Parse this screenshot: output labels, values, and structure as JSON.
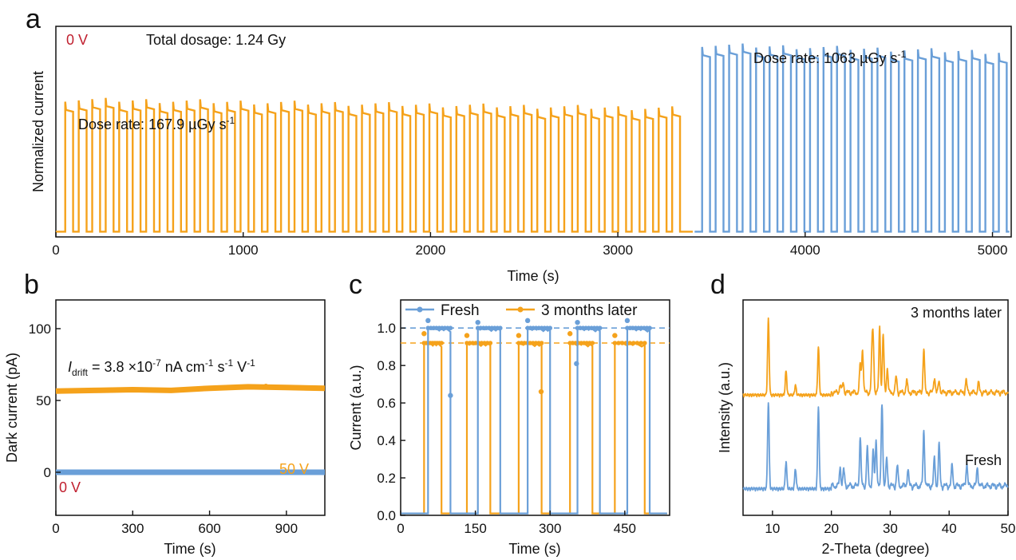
{
  "colors": {
    "orange": "#F5A21B",
    "blue": "#6A9FD8",
    "red": "#C0202F",
    "axis": "#111111"
  },
  "panels": {
    "a": {
      "letter": "a"
    },
    "b": {
      "letter": "b"
    },
    "c": {
      "letter": "c"
    },
    "d": {
      "letter": "d"
    }
  },
  "chart_data": [
    {
      "id": "a",
      "type": "line",
      "xlabel": "Time (s)",
      "ylabel": "Normalized current",
      "xlim": [
        0,
        5100
      ],
      "xticks": [
        0,
        1000,
        2000,
        3000,
        4000,
        5000
      ],
      "y_ticks_shown": false,
      "grid": false,
      "annotations": {
        "bias": "0 V",
        "total": "Total dosage: 1.24 Gy",
        "rate1_main": "Dose rate: 167.9 µGy s",
        "rate1_sup": "-1",
        "rate2_main": "Dose rate: 1063 µGy s",
        "rate2_sup": "-1"
      },
      "series": [
        {
          "color": "orange",
          "pulse_start_s": 50,
          "pulse_period_s": 72,
          "pulse_on_s": 42,
          "pulse_count": 46,
          "baseline": 0.02,
          "on_level_start": 0.7,
          "on_level_end": 0.65,
          "x_end": 3400
        },
        {
          "color": "blue",
          "pulse_start_s": 3450,
          "pulse_period_s": 72,
          "pulse_on_s": 42,
          "pulse_count": 23,
          "baseline": 0.02,
          "on_level_start": 1.0,
          "on_level_end": 0.96,
          "x_end": 5090
        }
      ]
    },
    {
      "id": "b",
      "type": "line",
      "xlabel": "Time (s)",
      "ylabel": "Dark current (pA)",
      "xlim": [
        0,
        1050
      ],
      "ylim": [
        -30,
        120
      ],
      "xticks": [
        0,
        300,
        600,
        900
      ],
      "yticks": [
        0,
        50,
        100
      ],
      "grid": false,
      "annotations": {
        "drift_I": "I",
        "drift_sub": "drift",
        "drift_main": " = 3.8 ×10",
        "drift_exp": "-7",
        "drift_unit1": " nA cm",
        "drift_unit1_exp": "-1",
        "drift_unit2": " s",
        "drift_unit2_exp": "-1",
        "drift_unit3": " V",
        "drift_unit3_exp": "-1",
        "label_50v": "50 V",
        "label_0v": "0 V"
      },
      "series": [
        {
          "name": "50 V",
          "color": "orange",
          "x": [
            0,
            150,
            300,
            450,
            600,
            750,
            900,
            1050
          ],
          "y": [
            56.5,
            57,
            57.5,
            57,
            58.5,
            59.5,
            59,
            58.5
          ]
        },
        {
          "name": "0 V",
          "color": "blue",
          "x": [
            0,
            1050
          ],
          "y": [
            0,
            0
          ]
        }
      ]
    },
    {
      "id": "c",
      "type": "line",
      "xlabel": "Time (s)",
      "ylabel": "Current (a.u.)",
      "xlim": [
        0,
        540
      ],
      "ylim": [
        0,
        1.15
      ],
      "xticks": [
        0,
        150,
        300,
        450
      ],
      "yticks": [
        0.0,
        0.2,
        0.4,
        0.6,
        0.8,
        1.0
      ],
      "reference_lines": [
        1.0,
        0.92
      ],
      "legend": {
        "position": "top",
        "items": [
          "Fresh",
          "3 months later"
        ]
      },
      "grid": false,
      "series": [
        {
          "name": "Fresh",
          "color": "blue",
          "pulses": [
            [
              55,
              100
            ],
            [
              155,
              200
            ],
            [
              255,
              300
            ],
            [
              355,
              400
            ],
            [
              455,
              500
            ]
          ],
          "on_level": 1.0,
          "baseline": 0.01,
          "spikes": [
            [
              55,
              1.04
            ],
            [
              155,
              1.03
            ],
            [
              255,
              1.04
            ],
            [
              355,
              1.03
            ],
            [
              455,
              1.04
            ]
          ],
          "outliers": [
            [
              100,
              0.64
            ],
            [
              353,
              0.81
            ]
          ]
        },
        {
          "name": "3 months later",
          "color": "orange",
          "pulses": [
            [
              47,
              82
            ],
            [
              133,
              180
            ],
            [
              237,
              283
            ],
            [
              340,
              385
            ],
            [
              430,
              490
            ]
          ],
          "on_level": 0.92,
          "baseline": 0.01,
          "spikes": [
            [
              47,
              0.97
            ],
            [
              133,
              0.96
            ],
            [
              237,
              0.96
            ],
            [
              340,
              0.97
            ],
            [
              430,
              0.96
            ]
          ],
          "outliers": [
            [
              282,
              0.66
            ]
          ]
        }
      ]
    },
    {
      "id": "d",
      "type": "line",
      "xlabel": "2-Theta (degree)",
      "ylabel": "Intensity (a.u.)",
      "xlim": [
        5,
        50
      ],
      "xticks": [
        10,
        20,
        30,
        40,
        50
      ],
      "y_ticks_shown": false,
      "grid": false,
      "series": [
        {
          "name": "3 months later",
          "color": "orange",
          "baseline": 0.55,
          "peaks": [
            [
              9.3,
              0.95
            ],
            [
              12.3,
              0.3
            ],
            [
              13.9,
              0.12
            ],
            [
              17.8,
              0.6
            ],
            [
              21.5,
              0.1
            ],
            [
              22.0,
              0.12
            ],
            [
              24.9,
              0.35
            ],
            [
              25.3,
              0.55
            ],
            [
              26.9,
              0.45
            ],
            [
              27.1,
              0.6
            ],
            [
              28.2,
              0.82
            ],
            [
              28.8,
              0.72
            ],
            [
              29.5,
              0.3
            ],
            [
              31.0,
              0.2
            ],
            [
              32.8,
              0.15
            ],
            [
              35.7,
              0.55
            ],
            [
              37.5,
              0.2
            ],
            [
              38.3,
              0.15
            ],
            [
              42.9,
              0.15
            ],
            [
              45.0,
              0.12
            ]
          ]
        },
        {
          "name": "Fresh",
          "color": "blue",
          "baseline": 0.0,
          "peaks": [
            [
              9.3,
              0.95
            ],
            [
              12.3,
              0.3
            ],
            [
              13.9,
              0.22
            ],
            [
              17.8,
              0.9
            ],
            [
              21.5,
              0.2
            ],
            [
              22.1,
              0.18
            ],
            [
              24.9,
              0.52
            ],
            [
              26.1,
              0.42
            ],
            [
              27.1,
              0.38
            ],
            [
              27.6,
              0.5
            ],
            [
              28.6,
              0.92
            ],
            [
              29.4,
              0.3
            ],
            [
              31.2,
              0.22
            ],
            [
              33.0,
              0.18
            ],
            [
              35.7,
              0.6
            ],
            [
              37.5,
              0.3
            ],
            [
              38.3,
              0.45
            ],
            [
              40.5,
              0.22
            ],
            [
              43.0,
              0.25
            ],
            [
              44.8,
              0.2
            ]
          ]
        }
      ],
      "labels": [
        "3 months later",
        "Fresh"
      ]
    }
  ]
}
